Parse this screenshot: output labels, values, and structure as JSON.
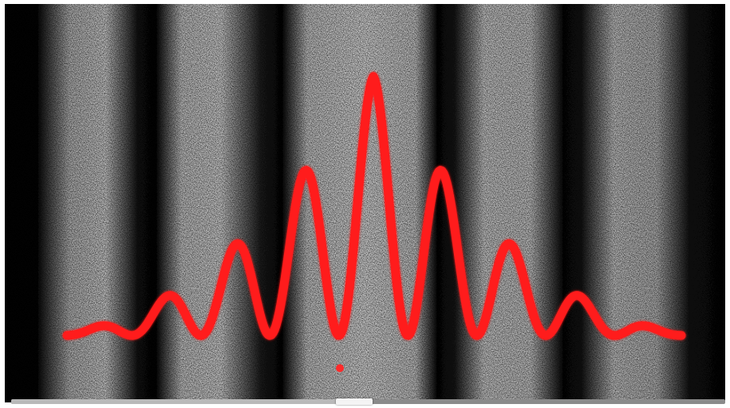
{
  "image": {
    "subject": "",
    "colors": {
      "background": "#050505",
      "fringe_bright": "#e6e6e6",
      "curve": "#ff1a1a"
    },
    "fringe_count": 10,
    "curve_peaks": 9
  },
  "player": {
    "progress_fraction": 0.48
  }
}
